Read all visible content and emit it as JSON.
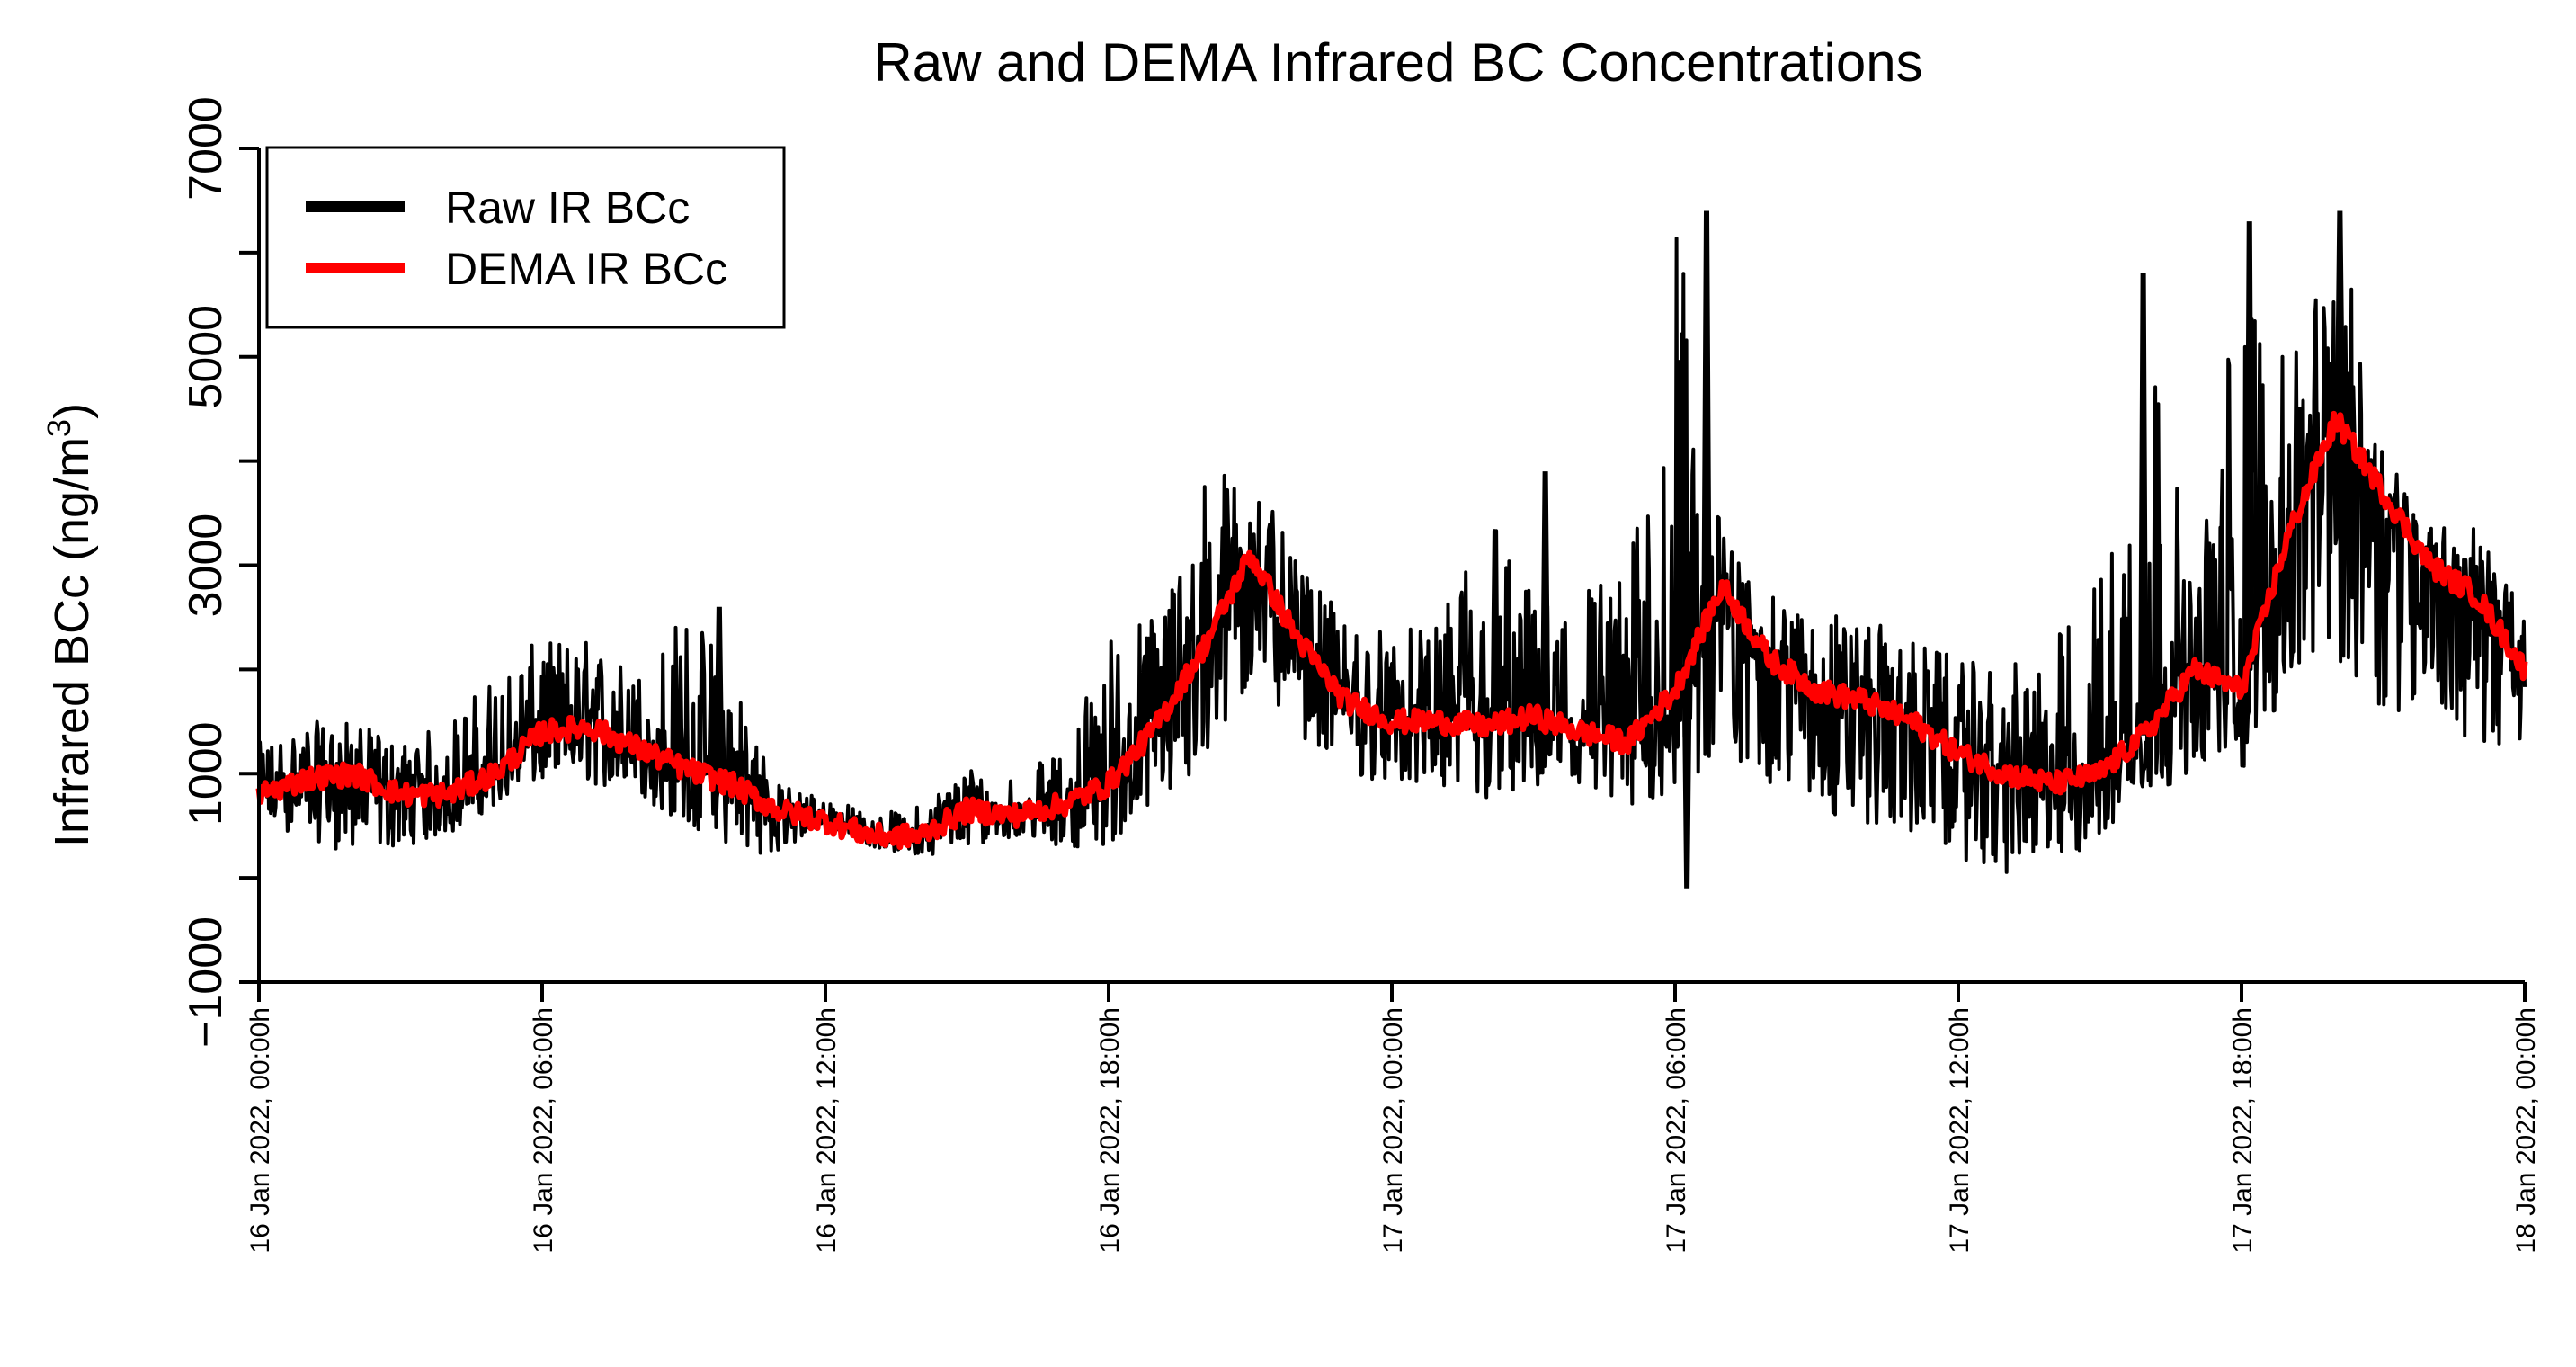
{
  "chart_data": {
    "type": "line",
    "title": "Raw and DEMA Infrared BC Concentrations",
    "ylabel_main": "Infrared BCc (ng/m",
    "ylabel_sup": "3",
    "ylabel_close": ")",
    "ylim": [
      -1000,
      7000
    ],
    "y_ticks": [
      -1000,
      1000,
      3000,
      5000,
      7000
    ],
    "y_tick_labels": [
      "−1000",
      "1000",
      "3000",
      "5000",
      "7000"
    ],
    "x_range_hours": [
      0,
      48
    ],
    "x_ticks_hours": [
      0,
      6,
      12,
      18,
      24,
      30,
      36,
      42,
      48
    ],
    "x_tick_labels": [
      "16 Jan 2022, 00:00h",
      "16 Jan 2022, 06:00h",
      "16 Jan 2022, 12:00h",
      "16 Jan 2022, 18:00h",
      "17 Jan 2022, 00:00h",
      "17 Jan 2022, 06:00h",
      "17 Jan 2022, 12:00h",
      "17 Jan 2022, 18:00h",
      "18 Jan 2022, 00:00h"
    ],
    "legend_position": "top-left",
    "series": [
      {
        "name": "Raw IR BCc",
        "color": "#000000",
        "x": [
          "16 Jan 2022, 00:00h",
          "16 Jan 2022, 01:00h",
          "16 Jan 2022, 02:00h",
          "16 Jan 2022, 03:00h",
          "16 Jan 2022, 04:00h",
          "16 Jan 2022, 05:00h",
          "16 Jan 2022, 06:00h",
          "16 Jan 2022, 07:00h",
          "16 Jan 2022, 08:00h",
          "16 Jan 2022, 09:00h",
          "16 Jan 2022, 10:00h",
          "16 Jan 2022, 11:00h",
          "16 Jan 2022, 12:00h",
          "16 Jan 2022, 13:00h",
          "16 Jan 2022, 14:00h",
          "16 Jan 2022, 15:00h",
          "16 Jan 2022, 16:00h",
          "16 Jan 2022, 17:00h",
          "16 Jan 2022, 18:00h",
          "16 Jan 2022, 19:00h",
          "16 Jan 2022, 20:00h",
          "16 Jan 2022, 21:00h",
          "16 Jan 2022, 22:00h",
          "16 Jan 2022, 23:00h",
          "17 Jan 2022, 00:00h",
          "17 Jan 2022, 01:00h",
          "17 Jan 2022, 02:00h",
          "17 Jan 2022, 03:00h",
          "17 Jan 2022, 04:00h",
          "17 Jan 2022, 05:00h",
          "17 Jan 2022, 06:00h",
          "17 Jan 2022, 07:00h",
          "17 Jan 2022, 08:00h",
          "17 Jan 2022, 09:00h",
          "17 Jan 2022, 10:00h",
          "17 Jan 2022, 11:00h",
          "17 Jan 2022, 12:00h",
          "17 Jan 2022, 13:00h",
          "17 Jan 2022, 14:00h",
          "17 Jan 2022, 15:00h",
          "17 Jan 2022, 16:00h",
          "17 Jan 2022, 17:00h",
          "17 Jan 2022, 18:00h",
          "17 Jan 2022, 19:00h",
          "17 Jan 2022, 20:00h",
          "17 Jan 2022, 21:00h",
          "17 Jan 2022, 22:00h",
          "17 Jan 2022, 23:00h",
          "18 Jan 2022, 00:00h"
        ],
        "y_min": [
          500,
          400,
          200,
          300,
          400,
          700,
          900,
          900,
          800,
          500,
          300,
          200,
          500,
          300,
          200,
          300,
          400,
          300,
          300,
          700,
          900,
          1800,
          1400,
          1000,
          900,
          800,
          700,
          800,
          700,
          600,
          800,
          1000,
          900,
          600,
          500,
          400,
          200,
          0,
          100,
          300,
          800,
          1000,
          1000,
          1800,
          2000,
          1600,
          1600,
          1200,
          1200
        ],
        "y_max": [
          1300,
          1500,
          1500,
          1300,
          1500,
          2000,
          2300,
          2300,
          2000,
          2600,
          2200,
          900,
          800,
          600,
          700,
          1100,
          1000,
          1200,
          2400,
          2600,
          3900,
          4000,
          3000,
          2500,
          2400,
          2400,
          3900,
          2700,
          3000,
          2900,
          6400,
          3300,
          2700,
          2600,
          2500,
          2300,
          2100,
          2000,
          2300,
          3000,
          5800,
          2600,
          6300,
          4800,
          6400,
          4200,
          3400,
          3400,
          2500
        ],
        "spikes": [
          {
            "x": "16 Jan 2022, 09:45h",
            "y": 2600
          },
          {
            "x": "17 Jan 2022, 03:15h",
            "y": 3900
          },
          {
            "x": "17 Jan 2022, 06:40h",
            "y": 6400
          },
          {
            "x": "17 Jan 2022, 06:15h",
            "y": -100
          },
          {
            "x": "17 Jan 2022, 15:55h",
            "y": 5800
          },
          {
            "x": "17 Jan 2022, 18:10h",
            "y": 6300
          },
          {
            "x": "17 Jan 2022, 20:05h",
            "y": 6400
          }
        ]
      },
      {
        "name": "DEMA IR BCc",
        "color": "#ff0000",
        "x": [
          "16 Jan 2022, 00:00h",
          "16 Jan 2022, 01:00h",
          "16 Jan 2022, 02:00h",
          "16 Jan 2022, 03:00h",
          "16 Jan 2022, 04:00h",
          "16 Jan 2022, 05:00h",
          "16 Jan 2022, 06:00h",
          "16 Jan 2022, 07:00h",
          "16 Jan 2022, 08:00h",
          "16 Jan 2022, 09:00h",
          "16 Jan 2022, 10:00h",
          "16 Jan 2022, 11:00h",
          "16 Jan 2022, 12:00h",
          "16 Jan 2022, 13:00h",
          "16 Jan 2022, 14:00h",
          "16 Jan 2022, 15:00h",
          "16 Jan 2022, 16:00h",
          "16 Jan 2022, 17:00h",
          "16 Jan 2022, 18:00h",
          "16 Jan 2022, 19:00h",
          "16 Jan 2022, 20:00h",
          "16 Jan 2022, 21:00h",
          "16 Jan 2022, 22:00h",
          "16 Jan 2022, 23:00h",
          "17 Jan 2022, 00:00h",
          "17 Jan 2022, 01:00h",
          "17 Jan 2022, 02:00h",
          "17 Jan 2022, 03:00h",
          "17 Jan 2022, 04:00h",
          "17 Jan 2022, 05:00h",
          "17 Jan 2022, 06:00h",
          "17 Jan 2022, 07:00h",
          "17 Jan 2022, 08:00h",
          "17 Jan 2022, 09:00h",
          "17 Jan 2022, 10:00h",
          "17 Jan 2022, 11:00h",
          "17 Jan 2022, 12:00h",
          "17 Jan 2022, 13:00h",
          "17 Jan 2022, 14:00h",
          "17 Jan 2022, 15:00h",
          "17 Jan 2022, 16:00h",
          "17 Jan 2022, 17:00h",
          "17 Jan 2022, 18:00h",
          "17 Jan 2022, 19:00h",
          "17 Jan 2022, 20:00h",
          "17 Jan 2022, 21:00h",
          "17 Jan 2022, 22:00h",
          "17 Jan 2022, 23:00h",
          "18 Jan 2022, 00:00h"
        ],
        "y": [
          800,
          950,
          1000,
          800,
          800,
          1000,
          1400,
          1450,
          1250,
          1050,
          900,
          650,
          550,
          400,
          400,
          650,
          600,
          700,
          900,
          1450,
          2200,
          3100,
          2300,
          1700,
          1500,
          1500,
          1450,
          1550,
          1400,
          1300,
          1800,
          2800,
          2100,
          1800,
          1700,
          1500,
          1200,
          1000,
          900,
          1000,
          1400,
          2000,
          1800,
          3300,
          4400,
          3700,
          3000,
          2700,
          2000
        ]
      }
    ]
  }
}
